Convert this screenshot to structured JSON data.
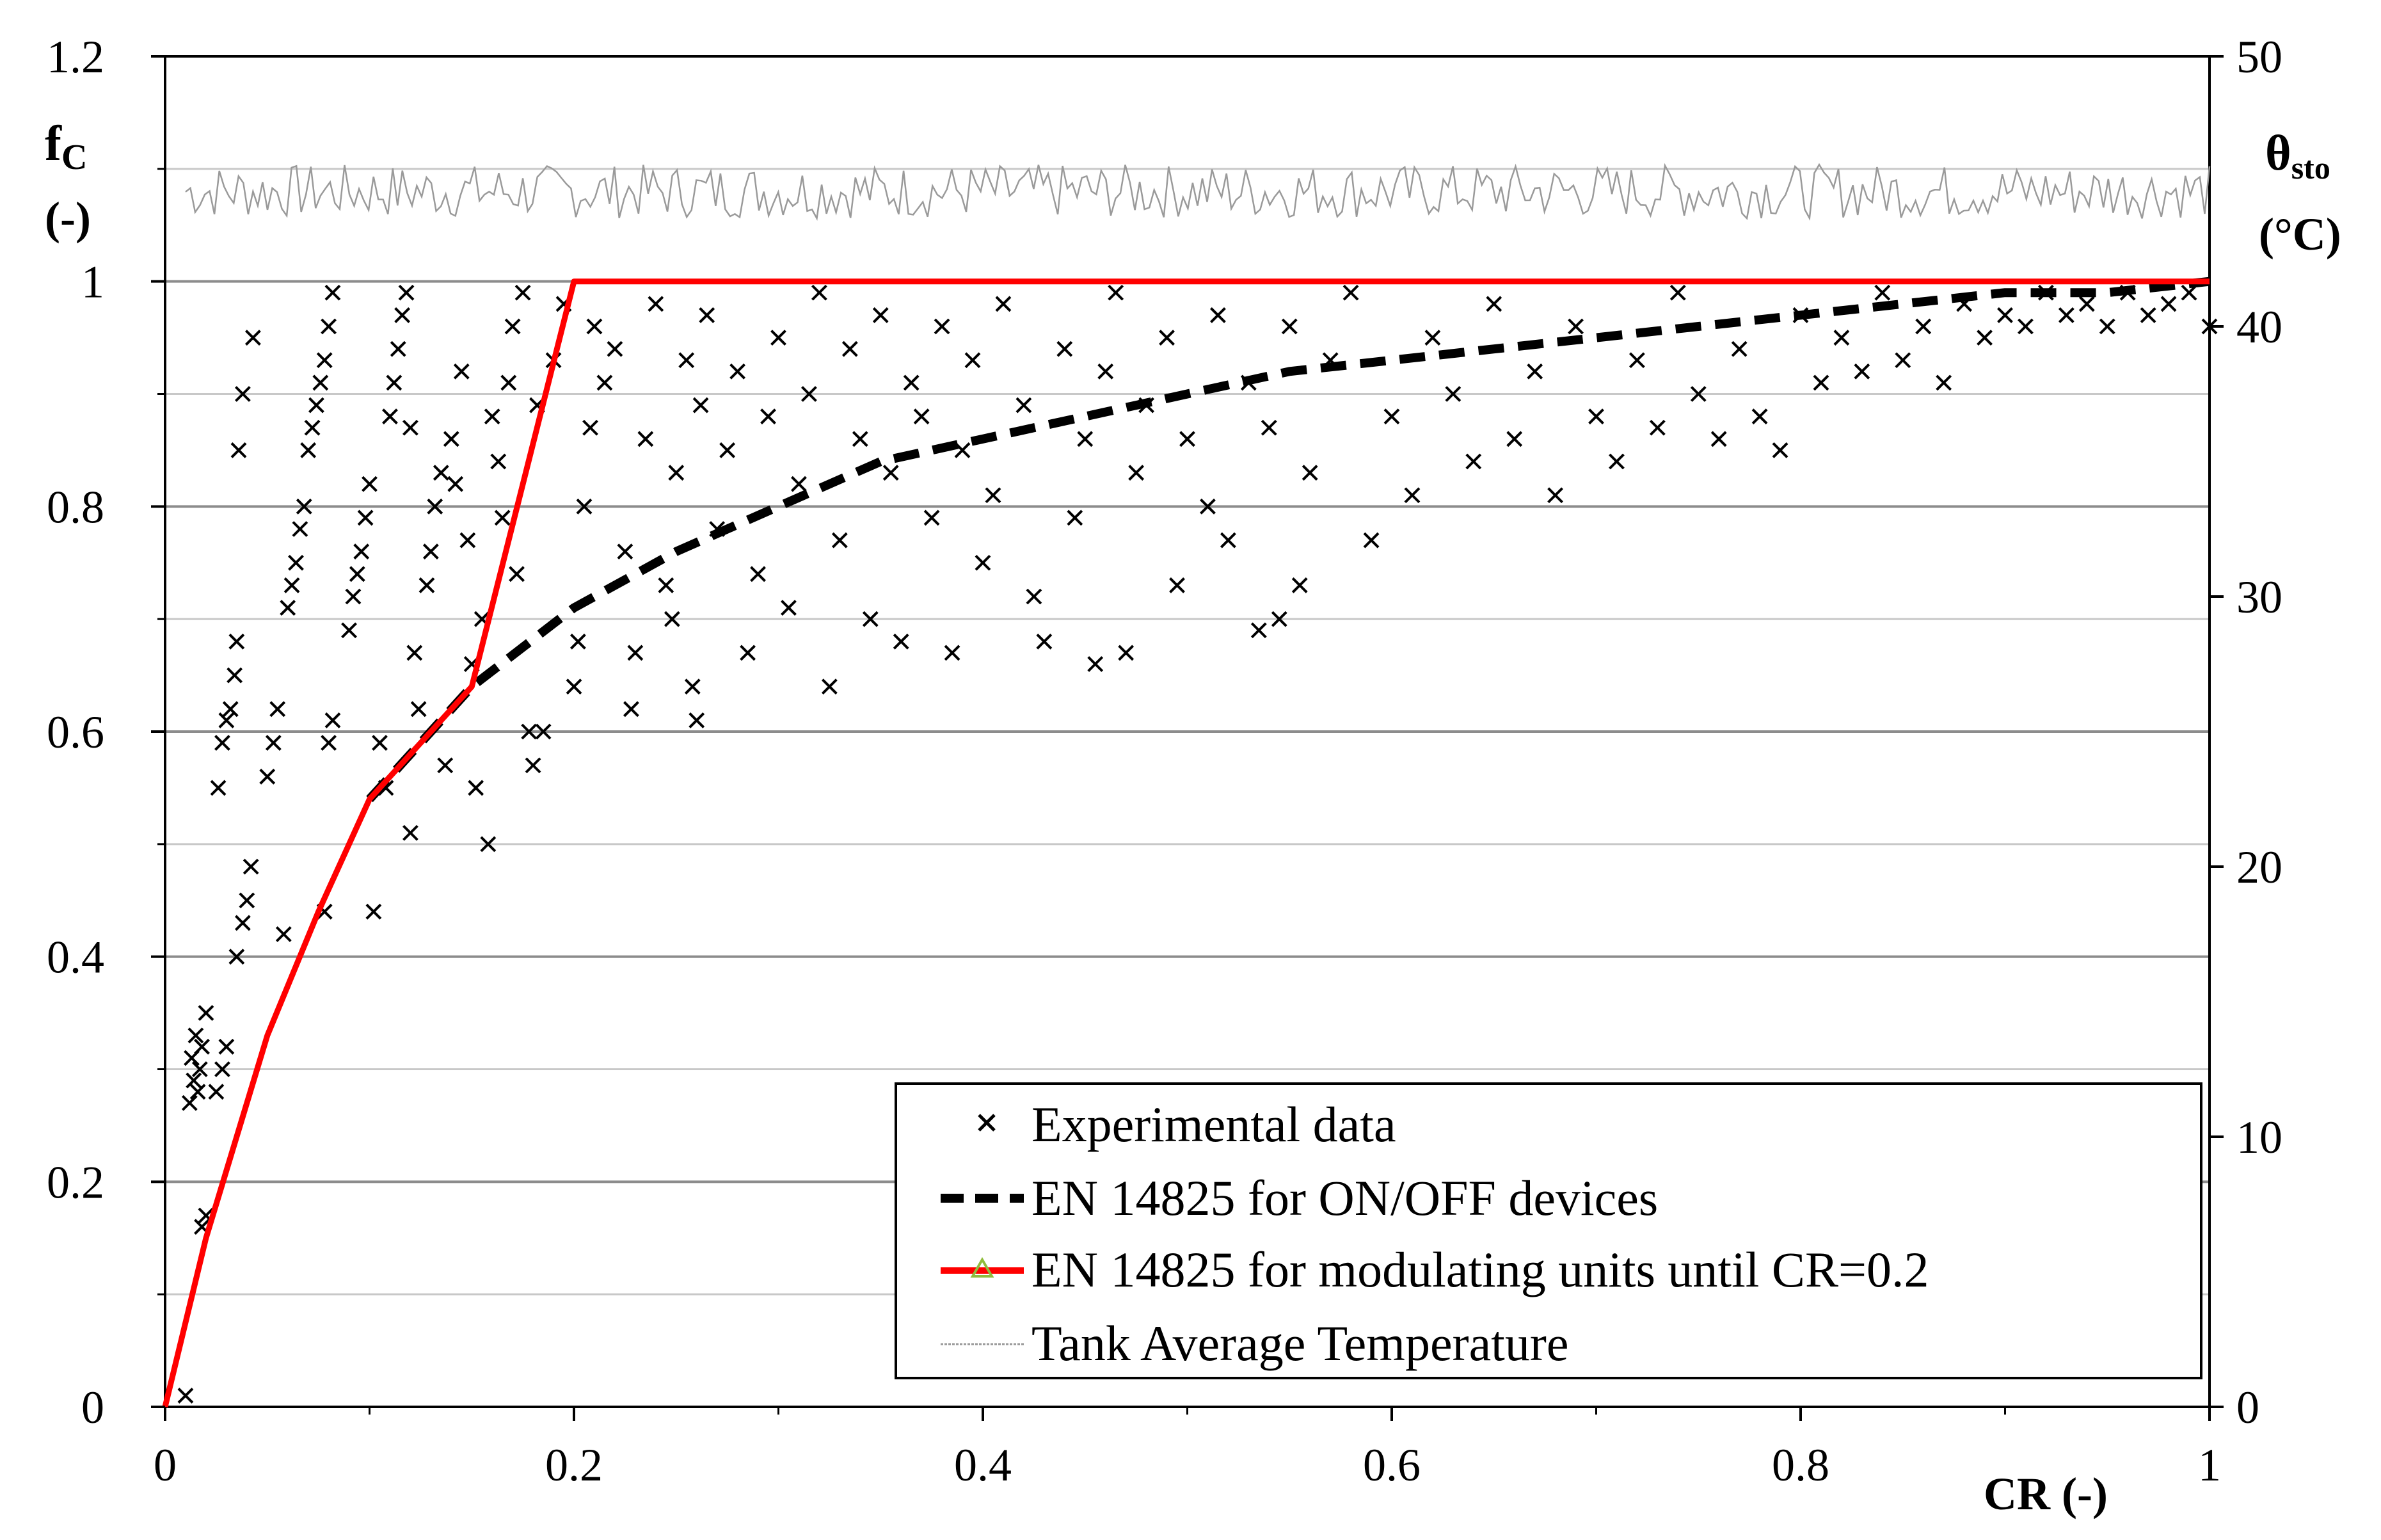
{
  "chart_data": {
    "type": "scatter",
    "x_axis": {
      "label": "CR (-)",
      "range": [
        0,
        1
      ],
      "ticks": [
        "0",
        "0.2",
        "0.4",
        "0.6",
        "0.8",
        "1"
      ]
    },
    "y_axis_left": {
      "label_main": "f",
      "label_sub": "C",
      "label_unit": "(-)",
      "range": [
        0,
        1.2
      ],
      "ticks": [
        "0",
        "0.2",
        "0.4",
        "0.6",
        "0.8",
        "1",
        "1.2"
      ]
    },
    "y_axis_right": {
      "label_main": "θ",
      "label_sub": "sto",
      "label_unit": "(°C)",
      "range": [
        0,
        50
      ],
      "ticks": [
        "0",
        "10",
        "20",
        "30",
        "40",
        "50"
      ]
    },
    "grid": true,
    "legend_position": "bottom-right",
    "series": [
      {
        "name": "Experimental data",
        "kind": "scatter",
        "marker": "x",
        "color": "#000000",
        "points": [
          [
            0.01,
            0.01
          ],
          [
            0.012,
            0.27
          ],
          [
            0.013,
            0.31
          ],
          [
            0.014,
            0.29
          ],
          [
            0.015,
            0.33
          ],
          [
            0.016,
            0.28
          ],
          [
            0.017,
            0.3
          ],
          [
            0.018,
            0.32
          ],
          [
            0.02,
            0.35
          ],
          [
            0.018,
            0.16
          ],
          [
            0.02,
            0.17
          ],
          [
            0.025,
            0.28
          ],
          [
            0.028,
            0.3
          ],
          [
            0.03,
            0.32
          ],
          [
            0.026,
            0.55
          ],
          [
            0.028,
            0.59
          ],
          [
            0.03,
            0.61
          ],
          [
            0.032,
            0.62
          ],
          [
            0.034,
            0.65
          ],
          [
            0.035,
            0.68
          ],
          [
            0.035,
            0.4
          ],
          [
            0.038,
            0.43
          ],
          [
            0.04,
            0.45
          ],
          [
            0.042,
            0.48
          ],
          [
            0.036,
            0.85
          ],
          [
            0.038,
            0.9
          ],
          [
            0.043,
            0.95
          ],
          [
            0.05,
            0.56
          ],
          [
            0.053,
            0.59
          ],
          [
            0.055,
            0.62
          ],
          [
            0.058,
            0.42
          ],
          [
            0.06,
            0.71
          ],
          [
            0.062,
            0.73
          ],
          [
            0.064,
            0.75
          ],
          [
            0.066,
            0.78
          ],
          [
            0.068,
            0.8
          ],
          [
            0.07,
            0.85
          ],
          [
            0.072,
            0.87
          ],
          [
            0.074,
            0.89
          ],
          [
            0.076,
            0.91
          ],
          [
            0.078,
            0.93
          ],
          [
            0.08,
            0.96
          ],
          [
            0.082,
            0.99
          ],
          [
            0.08,
            0.59
          ],
          [
            0.082,
            0.61
          ],
          [
            0.078,
            0.44
          ],
          [
            0.09,
            0.69
          ],
          [
            0.092,
            0.72
          ],
          [
            0.094,
            0.74
          ],
          [
            0.096,
            0.76
          ],
          [
            0.098,
            0.79
          ],
          [
            0.1,
            0.82
          ],
          [
            0.102,
            0.44
          ],
          [
            0.105,
            0.59
          ],
          [
            0.108,
            0.55
          ],
          [
            0.11,
            0.88
          ],
          [
            0.112,
            0.91
          ],
          [
            0.114,
            0.94
          ],
          [
            0.116,
            0.97
          ],
          [
            0.118,
            0.99
          ],
          [
            0.12,
            0.87
          ],
          [
            0.122,
            0.67
          ],
          [
            0.124,
            0.62
          ],
          [
            0.12,
            0.51
          ],
          [
            0.128,
            0.73
          ],
          [
            0.13,
            0.76
          ],
          [
            0.132,
            0.8
          ],
          [
            0.135,
            0.83
          ],
          [
            0.137,
            0.57
          ],
          [
            0.14,
            0.86
          ],
          [
            0.142,
            0.82
          ],
          [
            0.145,
            0.92
          ],
          [
            0.148,
            0.77
          ],
          [
            0.15,
            0.66
          ],
          [
            0.152,
            0.55
          ],
          [
            0.155,
            0.7
          ],
          [
            0.158,
            0.5
          ],
          [
            0.16,
            0.88
          ],
          [
            0.163,
            0.84
          ],
          [
            0.165,
            0.79
          ],
          [
            0.168,
            0.91
          ],
          [
            0.17,
            0.96
          ],
          [
            0.172,
            0.74
          ],
          [
            0.175,
            0.99
          ],
          [
            0.178,
            0.6
          ],
          [
            0.18,
            0.57
          ],
          [
            0.182,
            0.89
          ],
          [
            0.185,
            0.6
          ],
          [
            0.19,
            0.93
          ],
          [
            0.195,
            0.98
          ],
          [
            0.2,
            0.64
          ],
          [
            0.202,
            0.68
          ],
          [
            0.205,
            0.8
          ],
          [
            0.208,
            0.87
          ],
          [
            0.21,
            0.96
          ],
          [
            0.215,
            0.91
          ],
          [
            0.22,
            0.94
          ],
          [
            0.225,
            0.76
          ],
          [
            0.228,
            0.62
          ],
          [
            0.23,
            0.67
          ],
          [
            0.235,
            0.86
          ],
          [
            0.24,
            0.98
          ],
          [
            0.245,
            0.73
          ],
          [
            0.248,
            0.7
          ],
          [
            0.25,
            0.83
          ],
          [
            0.255,
            0.93
          ],
          [
            0.258,
            0.64
          ],
          [
            0.26,
            0.61
          ],
          [
            0.262,
            0.89
          ],
          [
            0.265,
            0.97
          ],
          [
            0.27,
            0.78
          ],
          [
            0.275,
            0.85
          ],
          [
            0.28,
            0.92
          ],
          [
            0.285,
            0.67
          ],
          [
            0.29,
            0.74
          ],
          [
            0.295,
            0.88
          ],
          [
            0.3,
            0.95
          ],
          [
            0.305,
            0.71
          ],
          [
            0.31,
            0.82
          ],
          [
            0.315,
            0.9
          ],
          [
            0.32,
            0.99
          ],
          [
            0.325,
            0.64
          ],
          [
            0.33,
            0.77
          ],
          [
            0.335,
            0.94
          ],
          [
            0.34,
            0.86
          ],
          [
            0.345,
            0.7
          ],
          [
            0.35,
            0.97
          ],
          [
            0.355,
            0.83
          ],
          [
            0.36,
            0.68
          ],
          [
            0.365,
            0.91
          ],
          [
            0.37,
            0.88
          ],
          [
            0.375,
            0.79
          ],
          [
            0.38,
            0.96
          ],
          [
            0.385,
            0.67
          ],
          [
            0.39,
            0.85
          ],
          [
            0.395,
            0.93
          ],
          [
            0.4,
            0.75
          ],
          [
            0.405,
            0.81
          ],
          [
            0.41,
            0.98
          ],
          [
            0.42,
            0.89
          ],
          [
            0.425,
            0.72
          ],
          [
            0.43,
            0.68
          ],
          [
            0.44,
            0.94
          ],
          [
            0.445,
            0.79
          ],
          [
            0.45,
            0.86
          ],
          [
            0.455,
            0.66
          ],
          [
            0.46,
            0.92
          ],
          [
            0.465,
            0.99
          ],
          [
            0.47,
            0.67
          ],
          [
            0.475,
            0.83
          ],
          [
            0.48,
            0.89
          ],
          [
            0.49,
            0.95
          ],
          [
            0.495,
            0.73
          ],
          [
            0.5,
            0.86
          ],
          [
            0.51,
            0.8
          ],
          [
            0.515,
            0.97
          ],
          [
            0.52,
            0.77
          ],
          [
            0.53,
            0.91
          ],
          [
            0.535,
            0.69
          ],
          [
            0.54,
            0.87
          ],
          [
            0.545,
            0.7
          ],
          [
            0.55,
            0.96
          ],
          [
            0.555,
            0.73
          ],
          [
            0.56,
            0.83
          ],
          [
            0.57,
            0.93
          ],
          [
            0.58,
            0.99
          ],
          [
            0.59,
            0.77
          ],
          [
            0.6,
            0.88
          ],
          [
            0.61,
            0.81
          ],
          [
            0.62,
            0.95
          ],
          [
            0.63,
            0.9
          ],
          [
            0.64,
            0.84
          ],
          [
            0.65,
            0.98
          ],
          [
            0.66,
            0.86
          ],
          [
            0.67,
            0.92
          ],
          [
            0.68,
            0.81
          ],
          [
            0.69,
            0.96
          ],
          [
            0.7,
            0.88
          ],
          [
            0.71,
            0.84
          ],
          [
            0.72,
            0.93
          ],
          [
            0.73,
            0.87
          ],
          [
            0.74,
            0.99
          ],
          [
            0.75,
            0.9
          ],
          [
            0.76,
            0.86
          ],
          [
            0.77,
            0.94
          ],
          [
            0.78,
            0.88
          ],
          [
            0.79,
            0.85
          ],
          [
            0.8,
            0.97
          ],
          [
            0.81,
            0.91
          ],
          [
            0.82,
            0.95
          ],
          [
            0.83,
            0.92
          ],
          [
            0.84,
            0.99
          ],
          [
            0.85,
            0.93
          ],
          [
            0.86,
            0.96
          ],
          [
            0.87,
            0.91
          ],
          [
            0.88,
            0.98
          ],
          [
            0.89,
            0.95
          ],
          [
            0.9,
            0.97
          ],
          [
            0.91,
            0.96
          ],
          [
            0.92,
            0.99
          ],
          [
            0.93,
            0.97
          ],
          [
            0.94,
            0.98
          ],
          [
            0.95,
            0.96
          ],
          [
            0.96,
            0.99
          ],
          [
            0.97,
            0.97
          ],
          [
            0.98,
            0.98
          ],
          [
            0.99,
            0.99
          ],
          [
            1.0,
            0.96
          ]
        ]
      },
      {
        "name": "EN 14825 for ON/OFF devices",
        "kind": "line",
        "style": "dashed",
        "color": "#000000",
        "points": [
          [
            0.1,
            0.54
          ],
          [
            0.15,
            0.64
          ],
          [
            0.2,
            0.71
          ],
          [
            0.25,
            0.76
          ],
          [
            0.3,
            0.8
          ],
          [
            0.35,
            0.84
          ],
          [
            0.4,
            0.86
          ],
          [
            0.45,
            0.88
          ],
          [
            0.5,
            0.9
          ],
          [
            0.55,
            0.92
          ],
          [
            0.6,
            0.93
          ],
          [
            0.65,
            0.94
          ],
          [
            0.7,
            0.95
          ],
          [
            0.75,
            0.96
          ],
          [
            0.8,
            0.97
          ],
          [
            0.85,
            0.98
          ],
          [
            0.9,
            0.99
          ],
          [
            0.95,
            0.99
          ],
          [
            1.0,
            1.0
          ]
        ]
      },
      {
        "name": "EN 14825 for modulating units until CR=0.2",
        "kind": "line",
        "style": "solid",
        "color": "#ff0000",
        "points": [
          [
            0.0,
            0.0
          ],
          [
            0.02,
            0.15
          ],
          [
            0.05,
            0.33
          ],
          [
            0.075,
            0.44
          ],
          [
            0.1,
            0.54
          ],
          [
            0.125,
            0.59
          ],
          [
            0.15,
            0.64
          ],
          [
            0.2,
            1.0
          ],
          [
            1.0,
            1.0
          ]
        ]
      },
      {
        "name": "Tank Average Temperature",
        "kind": "line",
        "style": "thin",
        "color": "#9a9a9a",
        "axis": "right",
        "mean": 45,
        "min": 44,
        "max": 46,
        "x_range": [
          0.01,
          1.0
        ]
      }
    ]
  }
}
